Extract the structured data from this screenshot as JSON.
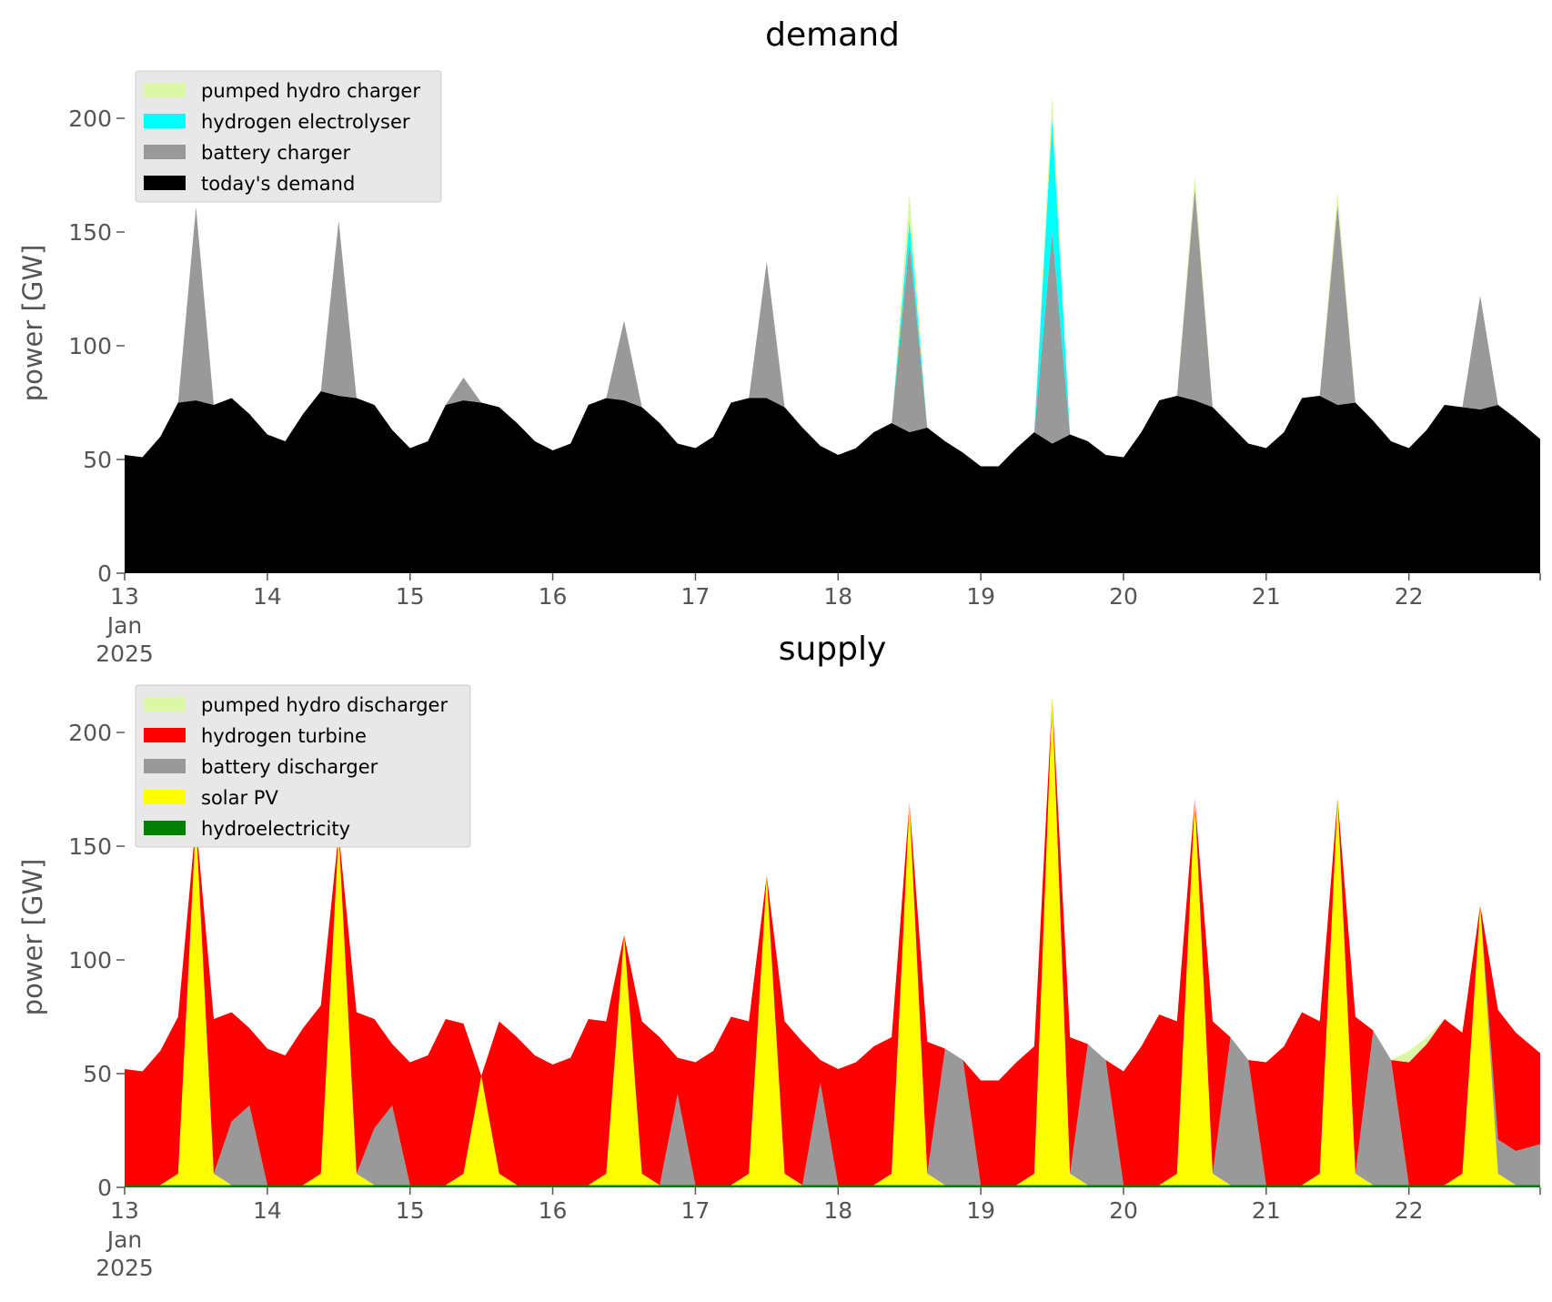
{
  "colors": {
    "pumped_hydro": "#dcf7a6",
    "hydrogen_electrolyser": "#00ffff",
    "hydrogen_turbine": "#ff0000",
    "battery": "#999999",
    "demand": "#000000",
    "solar": "#ffff00",
    "hydro": "#008000",
    "legend_bg": "#e8e8e8",
    "tick": "#555555"
  },
  "chart_data": [
    {
      "type": "area",
      "stacked": true,
      "title": "demand",
      "ylabel": "power [GW]",
      "ylim": [
        0,
        220
      ],
      "yticks": [
        0,
        50,
        100,
        150,
        200
      ],
      "xlim": [
        0,
        9.92
      ],
      "x_unit": "days after 13 Jan 2025",
      "xticks": [
        {
          "x": 0,
          "label": "13",
          "sub1": "Jan",
          "sub2": "2025"
        },
        {
          "x": 1,
          "label": "14"
        },
        {
          "x": 2,
          "label": "15"
        },
        {
          "x": 3,
          "label": "16"
        },
        {
          "x": 4,
          "label": "17"
        },
        {
          "x": 5,
          "label": "18"
        },
        {
          "x": 6,
          "label": "19"
        },
        {
          "x": 7,
          "label": "20"
        },
        {
          "x": 8,
          "label": "21"
        },
        {
          "x": 9,
          "label": "22"
        }
      ],
      "legend_position": "upper left",
      "legend": [
        {
          "label": "pumped hydro charger",
          "color": "pumped_hydro"
        },
        {
          "label": "hydrogen electrolyser",
          "color": "hydrogen_electrolyser"
        },
        {
          "label": "battery charger",
          "color": "battery"
        },
        {
          "label": "today's demand",
          "color": "demand"
        }
      ],
      "stack_order": [
        "demand",
        "battery",
        "hydrogen_electrolyser",
        "pumped_hydro"
      ],
      "x": [
        0,
        0.125,
        0.25,
        0.375,
        0.5,
        0.625,
        0.75,
        0.875,
        1,
        1.125,
        1.25,
        1.375,
        1.5,
        1.625,
        1.75,
        1.875,
        2,
        2.125,
        2.25,
        2.375,
        2.5,
        2.625,
        2.75,
        2.875,
        3,
        3.125,
        3.25,
        3.375,
        3.5,
        3.625,
        3.75,
        3.875,
        4,
        4.125,
        4.25,
        4.375,
        4.5,
        4.625,
        4.75,
        4.875,
        5,
        5.125,
        5.25,
        5.375,
        5.5,
        5.625,
        5.75,
        5.875,
        6,
        6.125,
        6.25,
        6.375,
        6.5,
        6.625,
        6.75,
        6.875,
        7,
        7.125,
        7.25,
        7.375,
        7.5,
        7.625,
        7.75,
        7.875,
        8,
        8.125,
        8.25,
        8.375,
        8.5,
        8.625,
        8.75,
        8.875,
        9,
        9.125,
        9.25,
        9.375,
        9.5,
        9.625,
        9.75,
        9.92
      ],
      "series": [
        {
          "key": "demand",
          "values": [
            52,
            51,
            60,
            75,
            76,
            74,
            77,
            70,
            61,
            58,
            70,
            80,
            78,
            77,
            74,
            63,
            55,
            58,
            74,
            76,
            75,
            73,
            66,
            58,
            54,
            57,
            74,
            77,
            76,
            73,
            66,
            57,
            55,
            60,
            75,
            77,
            77,
            73,
            64,
            56,
            52,
            55,
            62,
            66,
            62,
            64,
            58,
            53,
            47,
            47,
            55,
            62,
            57,
            61,
            58,
            52,
            51,
            62,
            76,
            78,
            76,
            73,
            65,
            57,
            55,
            62,
            77,
            78,
            74,
            75,
            67,
            58,
            55,
            63,
            74,
            73,
            72,
            74,
            68,
            59
          ]
        },
        {
          "key": "battery",
          "values": [
            0,
            0,
            0,
            0,
            85,
            0,
            0,
            0,
            0,
            0,
            0,
            0,
            77,
            0,
            0,
            0,
            0,
            0,
            0,
            10,
            0,
            0,
            0,
            0,
            0,
            0,
            0,
            0,
            35,
            0,
            0,
            0,
            0,
            0,
            0,
            0,
            60,
            0,
            0,
            0,
            0,
            0,
            0,
            0,
            83,
            0,
            0,
            0,
            0,
            0,
            0,
            0,
            93,
            0,
            0,
            0,
            0,
            0,
            0,
            0,
            93,
            0,
            0,
            0,
            0,
            0,
            0,
            0,
            88,
            0,
            0,
            0,
            0,
            0,
            0,
            0,
            50,
            0,
            0,
            0
          ]
        },
        {
          "key": "hydrogen_electrolyser",
          "values": [
            0,
            0,
            0,
            0,
            0,
            0,
            0,
            0,
            0,
            0,
            0,
            0,
            0,
            0,
            0,
            0,
            0,
            0,
            0,
            0,
            0,
            0,
            0,
            0,
            0,
            0,
            0,
            0,
            0,
            0,
            0,
            0,
            0,
            0,
            0,
            0,
            0,
            0,
            0,
            0,
            0,
            0,
            0,
            0,
            10,
            0,
            0,
            0,
            0,
            0,
            0,
            0,
            50,
            0,
            0,
            0,
            0,
            0,
            0,
            0,
            0,
            0,
            0,
            0,
            0,
            0,
            0,
            0,
            0,
            0,
            0,
            0,
            0,
            0,
            0,
            0,
            0,
            0,
            0,
            0
          ]
        },
        {
          "key": "pumped_hydro",
          "values": [
            0,
            0,
            0,
            0,
            0,
            0,
            0,
            0,
            0,
            0,
            0,
            0,
            0,
            0,
            0,
            0,
            0,
            0,
            0,
            0,
            0,
            0,
            0,
            0,
            0,
            0,
            0,
            0,
            0,
            0,
            0,
            0,
            0,
            0,
            0,
            0,
            0,
            0,
            0,
            0,
            0,
            0,
            0,
            0,
            12,
            0,
            0,
            0,
            0,
            0,
            0,
            0,
            10,
            0,
            0,
            0,
            0,
            0,
            0,
            0,
            6,
            0,
            0,
            0,
            0,
            0,
            0,
            0,
            6,
            0,
            0,
            0,
            0,
            0,
            0,
            0,
            0,
            0,
            0,
            0
          ]
        }
      ]
    },
    {
      "type": "area",
      "stacked": true,
      "title": "supply",
      "ylabel": "power [GW]",
      "ylim": [
        0,
        220
      ],
      "yticks": [
        0,
        50,
        100,
        150,
        200
      ],
      "xlim": [
        0,
        9.92
      ],
      "x_unit": "days after 13 Jan 2025",
      "xticks": [
        {
          "x": 0,
          "label": "13",
          "sub1": "Jan",
          "sub2": "2025"
        },
        {
          "x": 1,
          "label": "14"
        },
        {
          "x": 2,
          "label": "15"
        },
        {
          "x": 3,
          "label": "16"
        },
        {
          "x": 4,
          "label": "17"
        },
        {
          "x": 5,
          "label": "18"
        },
        {
          "x": 6,
          "label": "19"
        },
        {
          "x": 7,
          "label": "20"
        },
        {
          "x": 8,
          "label": "21"
        },
        {
          "x": 9,
          "label": "22"
        }
      ],
      "legend_position": "upper left",
      "legend": [
        {
          "label": "pumped hydro discharger",
          "color": "pumped_hydro"
        },
        {
          "label": "hydrogen turbine",
          "color": "hydrogen_turbine"
        },
        {
          "label": "battery discharger",
          "color": "battery"
        },
        {
          "label": "solar PV",
          "color": "solar"
        },
        {
          "label": "hydroelectricity",
          "color": "hydro"
        }
      ],
      "stack_order": [
        "hydro",
        "solar",
        "battery",
        "hydrogen_turbine",
        "pumped_hydro"
      ],
      "x": [
        0,
        0.125,
        0.25,
        0.375,
        0.5,
        0.625,
        0.75,
        0.875,
        1,
        1.125,
        1.25,
        1.375,
        1.5,
        1.625,
        1.75,
        1.875,
        2,
        2.125,
        2.25,
        2.375,
        2.5,
        2.625,
        2.75,
        2.875,
        3,
        3.125,
        3.25,
        3.375,
        3.5,
        3.625,
        3.75,
        3.875,
        4,
        4.125,
        4.25,
        4.375,
        4.5,
        4.625,
        4.75,
        4.875,
        5,
        5.125,
        5.25,
        5.375,
        5.5,
        5.625,
        5.75,
        5.875,
        6,
        6.125,
        6.25,
        6.375,
        6.5,
        6.625,
        6.75,
        6.875,
        7,
        7.125,
        7.25,
        7.375,
        7.5,
        7.625,
        7.75,
        7.875,
        8,
        8.125,
        8.25,
        8.375,
        8.5,
        8.625,
        8.75,
        8.875,
        9,
        9.125,
        9.25,
        9.375,
        9.5,
        9.625,
        9.75,
        9.92
      ],
      "series": [
        {
          "key": "hydro",
          "values": [
            1,
            1,
            1,
            1,
            1,
            1,
            1,
            1,
            1,
            1,
            1,
            1,
            1,
            1,
            1,
            1,
            1,
            1,
            1,
            1,
            1,
            1,
            1,
            1,
            1,
            1,
            1,
            1,
            1,
            1,
            1,
            1,
            1,
            1,
            1,
            1,
            1,
            1,
            1,
            1,
            1,
            1,
            1,
            1,
            1,
            1,
            1,
            1,
            1,
            1,
            1,
            1,
            1,
            1,
            1,
            1,
            1,
            1,
            1,
            1,
            1,
            1,
            1,
            1,
            1,
            1,
            1,
            1,
            1,
            1,
            1,
            1,
            1,
            1,
            1,
            1,
            1,
            1,
            1,
            1
          ]
        },
        {
          "key": "solar",
          "values": [
            0,
            0,
            0,
            5,
            160,
            5,
            0,
            0,
            0,
            0,
            0,
            5,
            155,
            5,
            0,
            0,
            0,
            0,
            0,
            5,
            48,
            5,
            0,
            0,
            0,
            0,
            0,
            5,
            110,
            5,
            0,
            0,
            0,
            0,
            0,
            5,
            136,
            5,
            0,
            0,
            0,
            0,
            0,
            5,
            168,
            5,
            0,
            0,
            0,
            0,
            0,
            5,
            214,
            5,
            0,
            0,
            0,
            0,
            0,
            5,
            170,
            5,
            0,
            0,
            0,
            0,
            0,
            5,
            170,
            5,
            0,
            0,
            0,
            0,
            0,
            5,
            123,
            5,
            0,
            0
          ]
        },
        {
          "key": "battery",
          "values": [
            0,
            0,
            0,
            0,
            0,
            0,
            28,
            35,
            0,
            0,
            0,
            0,
            0,
            0,
            25,
            35,
            0,
            0,
            0,
            0,
            0,
            0,
            0,
            0,
            0,
            0,
            0,
            0,
            0,
            0,
            0,
            40,
            0,
            0,
            0,
            0,
            0,
            0,
            0,
            45,
            0,
            0,
            0,
            0,
            0,
            0,
            60,
            55,
            0,
            0,
            0,
            0,
            0,
            0,
            62,
            55,
            0,
            0,
            0,
            0,
            0,
            0,
            65,
            55,
            0,
            0,
            0,
            0,
            0,
            0,
            68,
            55,
            0,
            0,
            0,
            0,
            0,
            15,
            15,
            18
          ]
        },
        {
          "key": "hydrogen_turbine",
          "values": [
            51,
            50,
            59,
            69,
            0,
            68,
            48,
            34,
            60,
            57,
            69,
            74,
            0,
            71,
            48,
            27,
            54,
            57,
            73,
            66,
            0,
            67,
            65,
            57,
            53,
            56,
            73,
            67,
            0,
            67,
            65,
            16,
            54,
            59,
            74,
            67,
            0,
            67,
            63,
            10,
            51,
            54,
            61,
            60,
            0,
            58,
            0,
            0,
            46,
            46,
            54,
            56,
            0,
            60,
            0,
            0,
            50,
            61,
            75,
            67,
            0,
            67,
            0,
            0,
            54,
            61,
            76,
            67,
            0,
            69,
            0,
            0,
            54,
            62,
            73,
            62,
            0,
            57,
            52,
            40
          ]
        },
        {
          "key": "pumped_hydro",
          "values": [
            0,
            0,
            0,
            0,
            0,
            0,
            0,
            0,
            0,
            0,
            0,
            0,
            0,
            0,
            0,
            0,
            0,
            0,
            0,
            0,
            0,
            0,
            0,
            0,
            0,
            0,
            0,
            0,
            0,
            0,
            0,
            0,
            0,
            0,
            0,
            0,
            0,
            0,
            0,
            0,
            0,
            0,
            0,
            0,
            0,
            0,
            0,
            0,
            0,
            0,
            0,
            0,
            0,
            0,
            0,
            0,
            0,
            0,
            0,
            0,
            0,
            0,
            0,
            0,
            0,
            0,
            0,
            0,
            0,
            0,
            0,
            0,
            5,
            3,
            0,
            0,
            0,
            0,
            0,
            0
          ]
        }
      ]
    }
  ]
}
